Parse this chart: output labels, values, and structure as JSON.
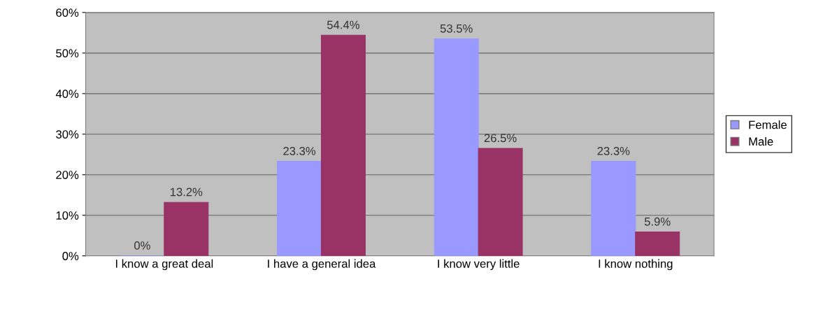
{
  "chart_data": {
    "type": "bar",
    "categories": [
      "I know a great deal",
      "I have a general idea",
      "I know very little",
      "I know nothing"
    ],
    "series": [
      {
        "name": "Female",
        "color": "#9999ff",
        "values": [
          0,
          23.3,
          53.5,
          23.3
        ],
        "value_labels": [
          "0%",
          "23.3%",
          "53.5%",
          "23.3%"
        ]
      },
      {
        "name": "Male",
        "color": "#993366",
        "values": [
          13.2,
          54.4,
          26.5,
          5.9
        ],
        "value_labels": [
          "13.2%",
          "54.4%",
          "26.5%",
          "5.9%"
        ]
      }
    ],
    "ylim": [
      0,
      60
    ],
    "yticks": [
      {
        "value": 0,
        "label": "0%"
      },
      {
        "value": 10,
        "label": "10%"
      },
      {
        "value": 20,
        "label": "20%"
      },
      {
        "value": 30,
        "label": "30%"
      },
      {
        "value": 40,
        "label": "40%"
      },
      {
        "value": 50,
        "label": "50%"
      },
      {
        "value": 60,
        "label": "60%"
      }
    ],
    "grid": "y",
    "legend": "right"
  }
}
